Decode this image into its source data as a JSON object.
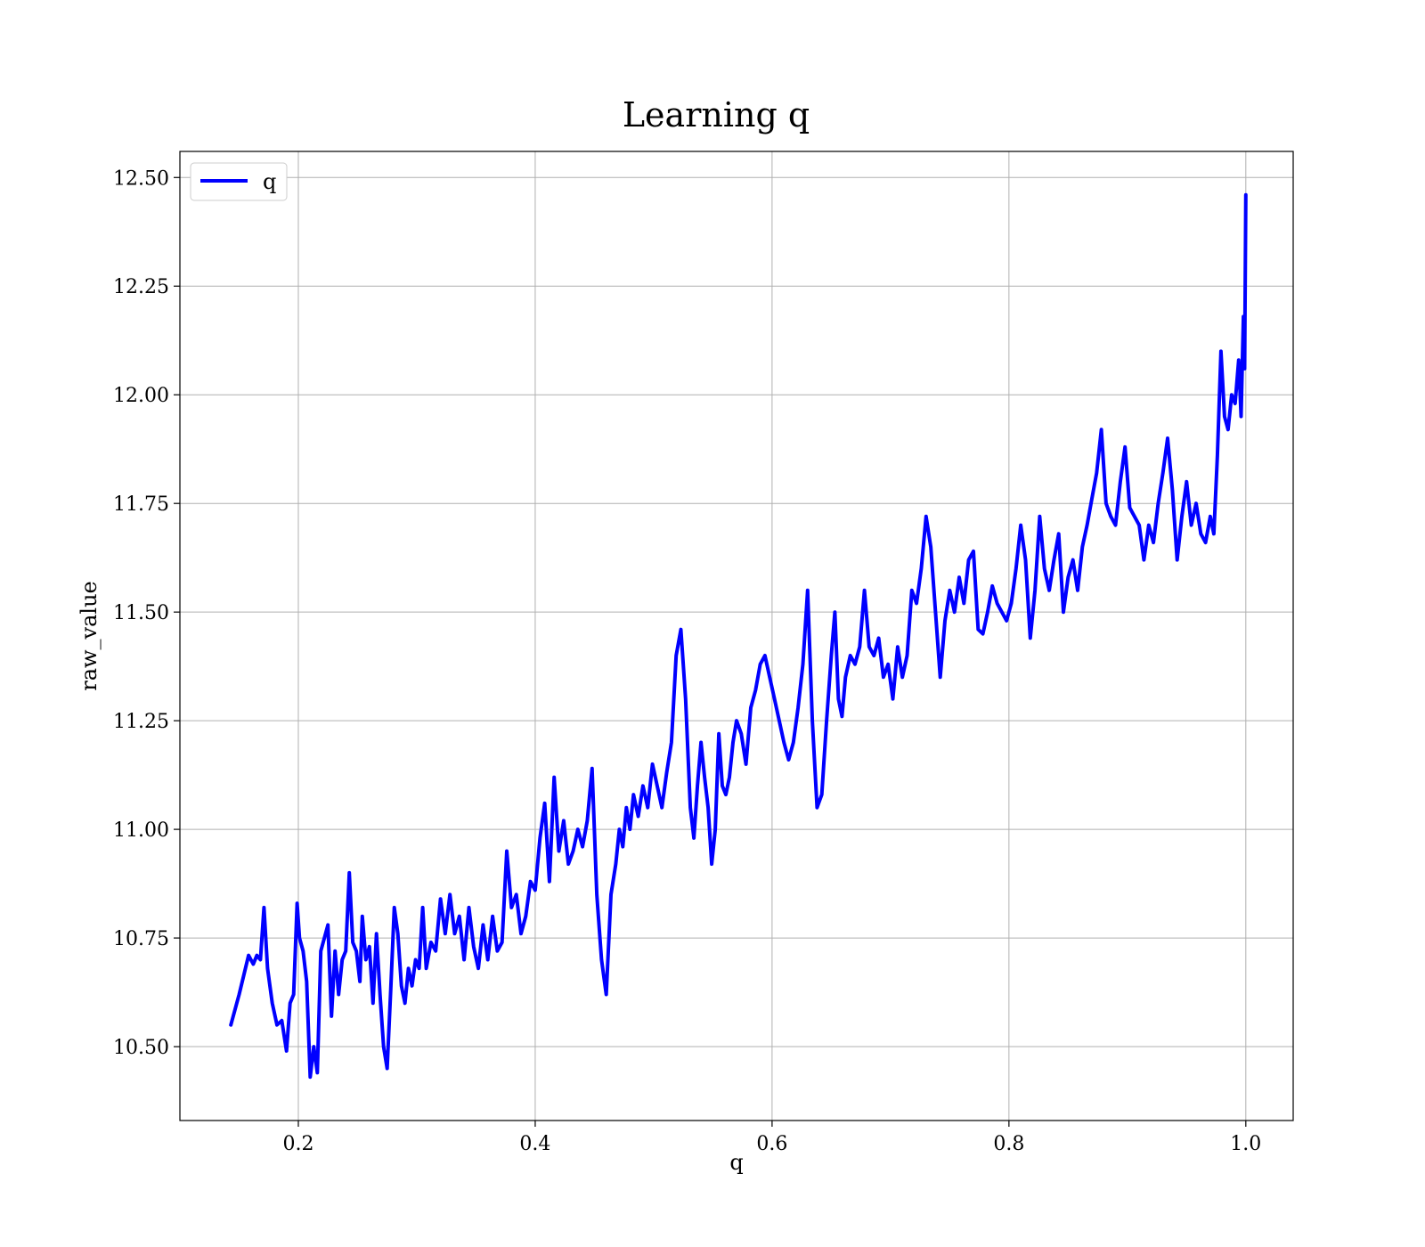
{
  "chart_data": {
    "type": "line",
    "title": "Learning q",
    "xlabel": "q",
    "ylabel": "raw_value",
    "xlim": [
      0.1,
      1.04
    ],
    "ylim": [
      10.33,
      12.56
    ],
    "xticks": [
      0.2,
      0.4,
      0.6,
      0.8,
      1.0
    ],
    "xtick_labels": [
      "0.2",
      "0.4",
      "0.6",
      "0.8",
      "1.0"
    ],
    "yticks": [
      10.5,
      10.75,
      11.0,
      11.25,
      11.5,
      11.75,
      12.0,
      12.25,
      12.5
    ],
    "ytick_labels": [
      "10.50",
      "10.75",
      "11.00",
      "11.25",
      "11.50",
      "11.75",
      "12.00",
      "12.25",
      "12.50"
    ],
    "grid": true,
    "legend": {
      "position": "top-left",
      "entries": [
        "q"
      ]
    },
    "series": [
      {
        "name": "q",
        "color": "#0000ff",
        "x": [
          0.143,
          0.15,
          0.158,
          0.162,
          0.165,
          0.168,
          0.171,
          0.174,
          0.178,
          0.182,
          0.186,
          0.19,
          0.193,
          0.196,
          0.199,
          0.201,
          0.204,
          0.207,
          0.21,
          0.213,
          0.216,
          0.219,
          0.222,
          0.225,
          0.228,
          0.231,
          0.234,
          0.237,
          0.24,
          0.243,
          0.246,
          0.249,
          0.252,
          0.254,
          0.257,
          0.26,
          0.263,
          0.266,
          0.269,
          0.272,
          0.275,
          0.278,
          0.281,
          0.284,
          0.287,
          0.29,
          0.293,
          0.296,
          0.299,
          0.302,
          0.305,
          0.308,
          0.312,
          0.316,
          0.32,
          0.324,
          0.328,
          0.332,
          0.336,
          0.34,
          0.344,
          0.348,
          0.352,
          0.356,
          0.36,
          0.364,
          0.368,
          0.372,
          0.376,
          0.38,
          0.384,
          0.388,
          0.392,
          0.396,
          0.4,
          0.404,
          0.408,
          0.412,
          0.416,
          0.42,
          0.424,
          0.428,
          0.432,
          0.436,
          0.44,
          0.444,
          0.448,
          0.452,
          0.456,
          0.46,
          0.464,
          0.468,
          0.471,
          0.474,
          0.477,
          0.48,
          0.483,
          0.487,
          0.491,
          0.495,
          0.499,
          0.503,
          0.507,
          0.511,
          0.515,
          0.519,
          0.523,
          0.527,
          0.531,
          0.534,
          0.537,
          0.54,
          0.543,
          0.546,
          0.549,
          0.552,
          0.555,
          0.558,
          0.561,
          0.564,
          0.567,
          0.57,
          0.574,
          0.578,
          0.582,
          0.586,
          0.59,
          0.594,
          0.598,
          0.602,
          0.606,
          0.61,
          0.614,
          0.618,
          0.622,
          0.626,
          0.63,
          0.634,
          0.638,
          0.642,
          0.646,
          0.65,
          0.653,
          0.656,
          0.659,
          0.662,
          0.666,
          0.67,
          0.674,
          0.678,
          0.682,
          0.686,
          0.69,
          0.694,
          0.698,
          0.702,
          0.706,
          0.71,
          0.714,
          0.718,
          0.722,
          0.726,
          0.73,
          0.734,
          0.738,
          0.742,
          0.746,
          0.75,
          0.754,
          0.758,
          0.762,
          0.766,
          0.77,
          0.774,
          0.778,
          0.782,
          0.786,
          0.79,
          0.794,
          0.798,
          0.802,
          0.806,
          0.81,
          0.814,
          0.818,
          0.822,
          0.826,
          0.83,
          0.834,
          0.838,
          0.842,
          0.846,
          0.85,
          0.854,
          0.858,
          0.862,
          0.866,
          0.87,
          0.874,
          0.878,
          0.882,
          0.886,
          0.89,
          0.894,
          0.898,
          0.902,
          0.906,
          0.91,
          0.914,
          0.918,
          0.922,
          0.926,
          0.93,
          0.934,
          0.938,
          0.942,
          0.946,
          0.95,
          0.954,
          0.958,
          0.962,
          0.966,
          0.97,
          0.973,
          0.976,
          0.979,
          0.982,
          0.985,
          0.988,
          0.991,
          0.994,
          0.996,
          0.998,
          0.999,
          1.0
        ],
        "y": [
          10.55,
          10.62,
          10.71,
          10.69,
          10.71,
          10.7,
          10.82,
          10.68,
          10.6,
          10.55,
          10.56,
          10.49,
          10.6,
          10.62,
          10.83,
          10.75,
          10.72,
          10.65,
          10.43,
          10.5,
          10.44,
          10.72,
          10.75,
          10.78,
          10.57,
          10.72,
          10.62,
          10.7,
          10.72,
          10.9,
          10.74,
          10.72,
          10.65,
          10.8,
          10.7,
          10.73,
          10.6,
          10.76,
          10.62,
          10.5,
          10.45,
          10.63,
          10.82,
          10.76,
          10.64,
          10.6,
          10.68,
          10.64,
          10.7,
          10.68,
          10.82,
          10.68,
          10.74,
          10.72,
          10.84,
          10.76,
          10.85,
          10.76,
          10.8,
          10.7,
          10.82,
          10.73,
          10.68,
          10.78,
          10.7,
          10.8,
          10.72,
          10.74,
          10.95,
          10.82,
          10.85,
          10.76,
          10.8,
          10.88,
          10.86,
          10.98,
          11.06,
          10.88,
          11.12,
          10.95,
          11.02,
          10.92,
          10.95,
          11.0,
          10.96,
          11.02,
          11.14,
          10.85,
          10.7,
          10.62,
          10.85,
          10.92,
          11.0,
          10.96,
          11.05,
          11.0,
          11.08,
          11.03,
          11.1,
          11.05,
          11.15,
          11.1,
          11.05,
          11.13,
          11.2,
          11.4,
          11.46,
          11.3,
          11.05,
          10.98,
          11.1,
          11.2,
          11.12,
          11.05,
          10.92,
          11.0,
          11.22,
          11.1,
          11.08,
          11.12,
          11.2,
          11.25,
          11.22,
          11.15,
          11.28,
          11.32,
          11.38,
          11.4,
          11.35,
          11.3,
          11.25,
          11.2,
          11.16,
          11.2,
          11.28,
          11.38,
          11.55,
          11.25,
          11.05,
          11.08,
          11.25,
          11.4,
          11.5,
          11.3,
          11.26,
          11.35,
          11.4,
          11.38,
          11.42,
          11.55,
          11.42,
          11.4,
          11.44,
          11.35,
          11.38,
          11.3,
          11.42,
          11.35,
          11.4,
          11.55,
          11.52,
          11.6,
          11.72,
          11.65,
          11.5,
          11.35,
          11.48,
          11.55,
          11.5,
          11.58,
          11.52,
          11.62,
          11.64,
          11.46,
          11.45,
          11.5,
          11.56,
          11.52,
          11.5,
          11.48,
          11.52,
          11.6,
          11.7,
          11.62,
          11.44,
          11.55,
          11.72,
          11.6,
          11.55,
          11.62,
          11.68,
          11.5,
          11.58,
          11.62,
          11.55,
          11.65,
          11.7,
          11.76,
          11.82,
          11.92,
          11.75,
          11.72,
          11.7,
          11.8,
          11.88,
          11.74,
          11.72,
          11.7,
          11.62,
          11.7,
          11.66,
          11.75,
          11.82,
          11.9,
          11.78,
          11.62,
          11.72,
          11.8,
          11.7,
          11.75,
          11.68,
          11.66,
          11.72,
          11.68,
          11.86,
          12.1,
          11.95,
          11.92,
          12.0,
          11.98,
          12.08,
          11.95,
          12.18,
          12.06,
          12.46
        ]
      }
    ]
  }
}
